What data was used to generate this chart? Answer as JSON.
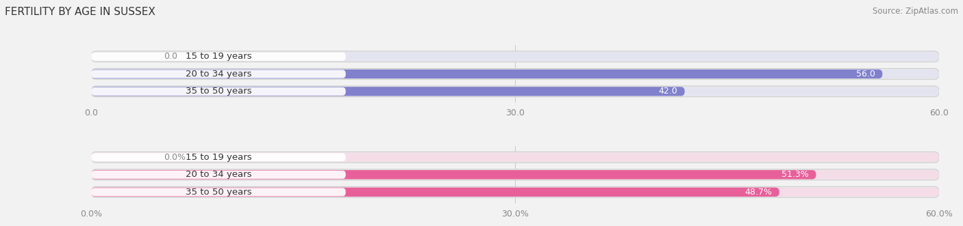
{
  "title": "FERTILITY BY AGE IN SUSSEX",
  "source": "Source: ZipAtlas.com",
  "top_chart": {
    "categories": [
      "15 to 19 years",
      "20 to 34 years",
      "35 to 50 years"
    ],
    "values": [
      0.0,
      56.0,
      42.0
    ],
    "xlim": [
      0,
      60
    ],
    "xticks": [
      0.0,
      30.0,
      60.0
    ],
    "xtick_labels": [
      "0.0",
      "30.0",
      "60.0"
    ],
    "bar_color": "#8080cc",
    "bar_bg_color": "#e4e4f0",
    "label_color_inside": "#ffffff",
    "label_color_outside": "#888888"
  },
  "bottom_chart": {
    "categories": [
      "15 to 19 years",
      "20 to 34 years",
      "35 to 50 years"
    ],
    "values": [
      0.0,
      51.3,
      48.7
    ],
    "xlim": [
      0,
      60
    ],
    "xticks": [
      0.0,
      30.0,
      60.0
    ],
    "xtick_labels": [
      "0.0%",
      "30.0%",
      "60.0%"
    ],
    "bar_color": "#e8609a",
    "bar_bg_color": "#f5dde8",
    "label_color_inside": "#ffffff",
    "label_color_outside": "#888888"
  },
  "bg_color": "#f2f2f2",
  "title_fontsize": 11,
  "source_fontsize": 8.5,
  "label_fontsize": 9,
  "tick_fontsize": 9,
  "category_fontsize": 9.5
}
